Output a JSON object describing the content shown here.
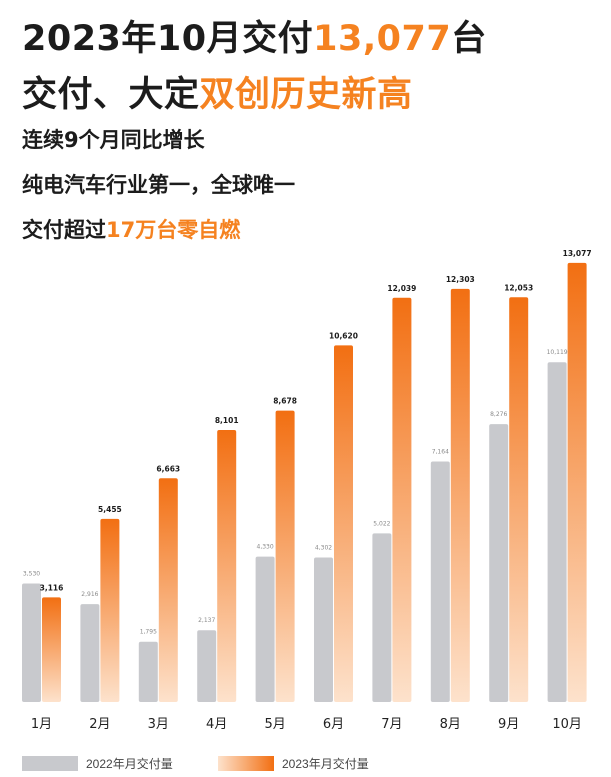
{
  "headline": {
    "line1_pre": "2023年10月交付",
    "line1_hl": "13,077",
    "line1_post": "台",
    "line2_pre": "交付、大定",
    "line2_hl": "双创历史新高"
  },
  "subheadings": {
    "line1": "连续9个月同比增长",
    "line2": "纯电汽车行业第一，全球唯一",
    "line3_pre": "交付超过",
    "line3_hl": "17万台零自燃"
  },
  "colors": {
    "accent": "#f58220",
    "bar_2022": "#c8c9cd",
    "bar_2023_top": "#f26f12",
    "bar_2023_bottom": "#fde2cc",
    "text": "#1c1c1c"
  },
  "chart_data": {
    "type": "bar",
    "categories": [
      "1月",
      "2月",
      "3月",
      "4月",
      "5月",
      "6月",
      "7月",
      "8月",
      "9月",
      "10月"
    ],
    "series": [
      {
        "name": "2022年月交付量",
        "values": [
          3530,
          2916,
          1795,
          2137,
          4330,
          4302,
          5022,
          7164,
          8276,
          10119
        ],
        "labels": [
          "3,530",
          "2,916",
          "1,795",
          "2,137",
          "4,330",
          "4,302",
          "5,022",
          "7,164",
          "8,276",
          "10,119"
        ]
      },
      {
        "name": "2023年月交付量",
        "values": [
          3116,
          5455,
          6663,
          8101,
          8678,
          10620,
          12039,
          12303,
          12053,
          13077
        ],
        "labels": [
          "3,116",
          "5,455",
          "6,663",
          "8,101",
          "8,678",
          "10,620",
          "12,039",
          "12,303",
          "12,053",
          "13,077"
        ]
      }
    ],
    "ylim": [
      0,
      13700
    ],
    "grid": false,
    "legend_position": "bottom-left"
  }
}
